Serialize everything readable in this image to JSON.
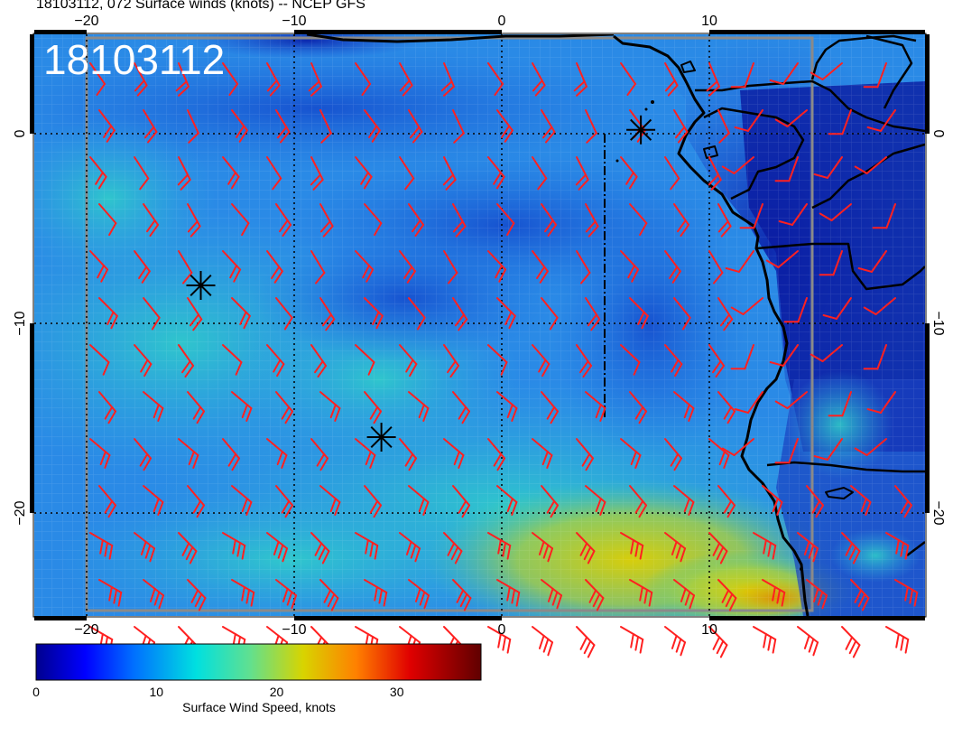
{
  "title": "18103112, 072 Surface winds (knots) -- NCEP GFS",
  "stamp": "18103112",
  "lon_ticks": [
    {
      "lon": -20,
      "label": "−20"
    },
    {
      "lon": -10,
      "label": "−10"
    },
    {
      "lon": 0,
      "label": "0"
    },
    {
      "lon": 10,
      "label": "10"
    }
  ],
  "lat_ticks": [
    {
      "lat": 0,
      "label": "0"
    },
    {
      "lat": -10,
      "label": "−10"
    },
    {
      "lat": -20,
      "label": "−20"
    }
  ],
  "colorbar": {
    "label": "Surface Wind Speed, knots",
    "min": 0,
    "max": 37,
    "ticks": [
      {
        "value": 0,
        "label": "0"
      },
      {
        "value": 10,
        "label": "10"
      },
      {
        "value": 20,
        "label": "20"
      },
      {
        "value": 30,
        "label": "30"
      }
    ]
  },
  "colors": {
    "barb": "#ff2020",
    "coast": "#000000",
    "grid": "#000000",
    "box": "#888888"
  },
  "markers": [
    {
      "name": "storm-marker-west",
      "lon": -14.5,
      "lat": -8
    },
    {
      "name": "storm-marker-south",
      "lon": -5.8,
      "lat": -16
    },
    {
      "name": "storm-marker-gulf",
      "lon": 6.7,
      "lat": 0.2
    }
  ]
}
